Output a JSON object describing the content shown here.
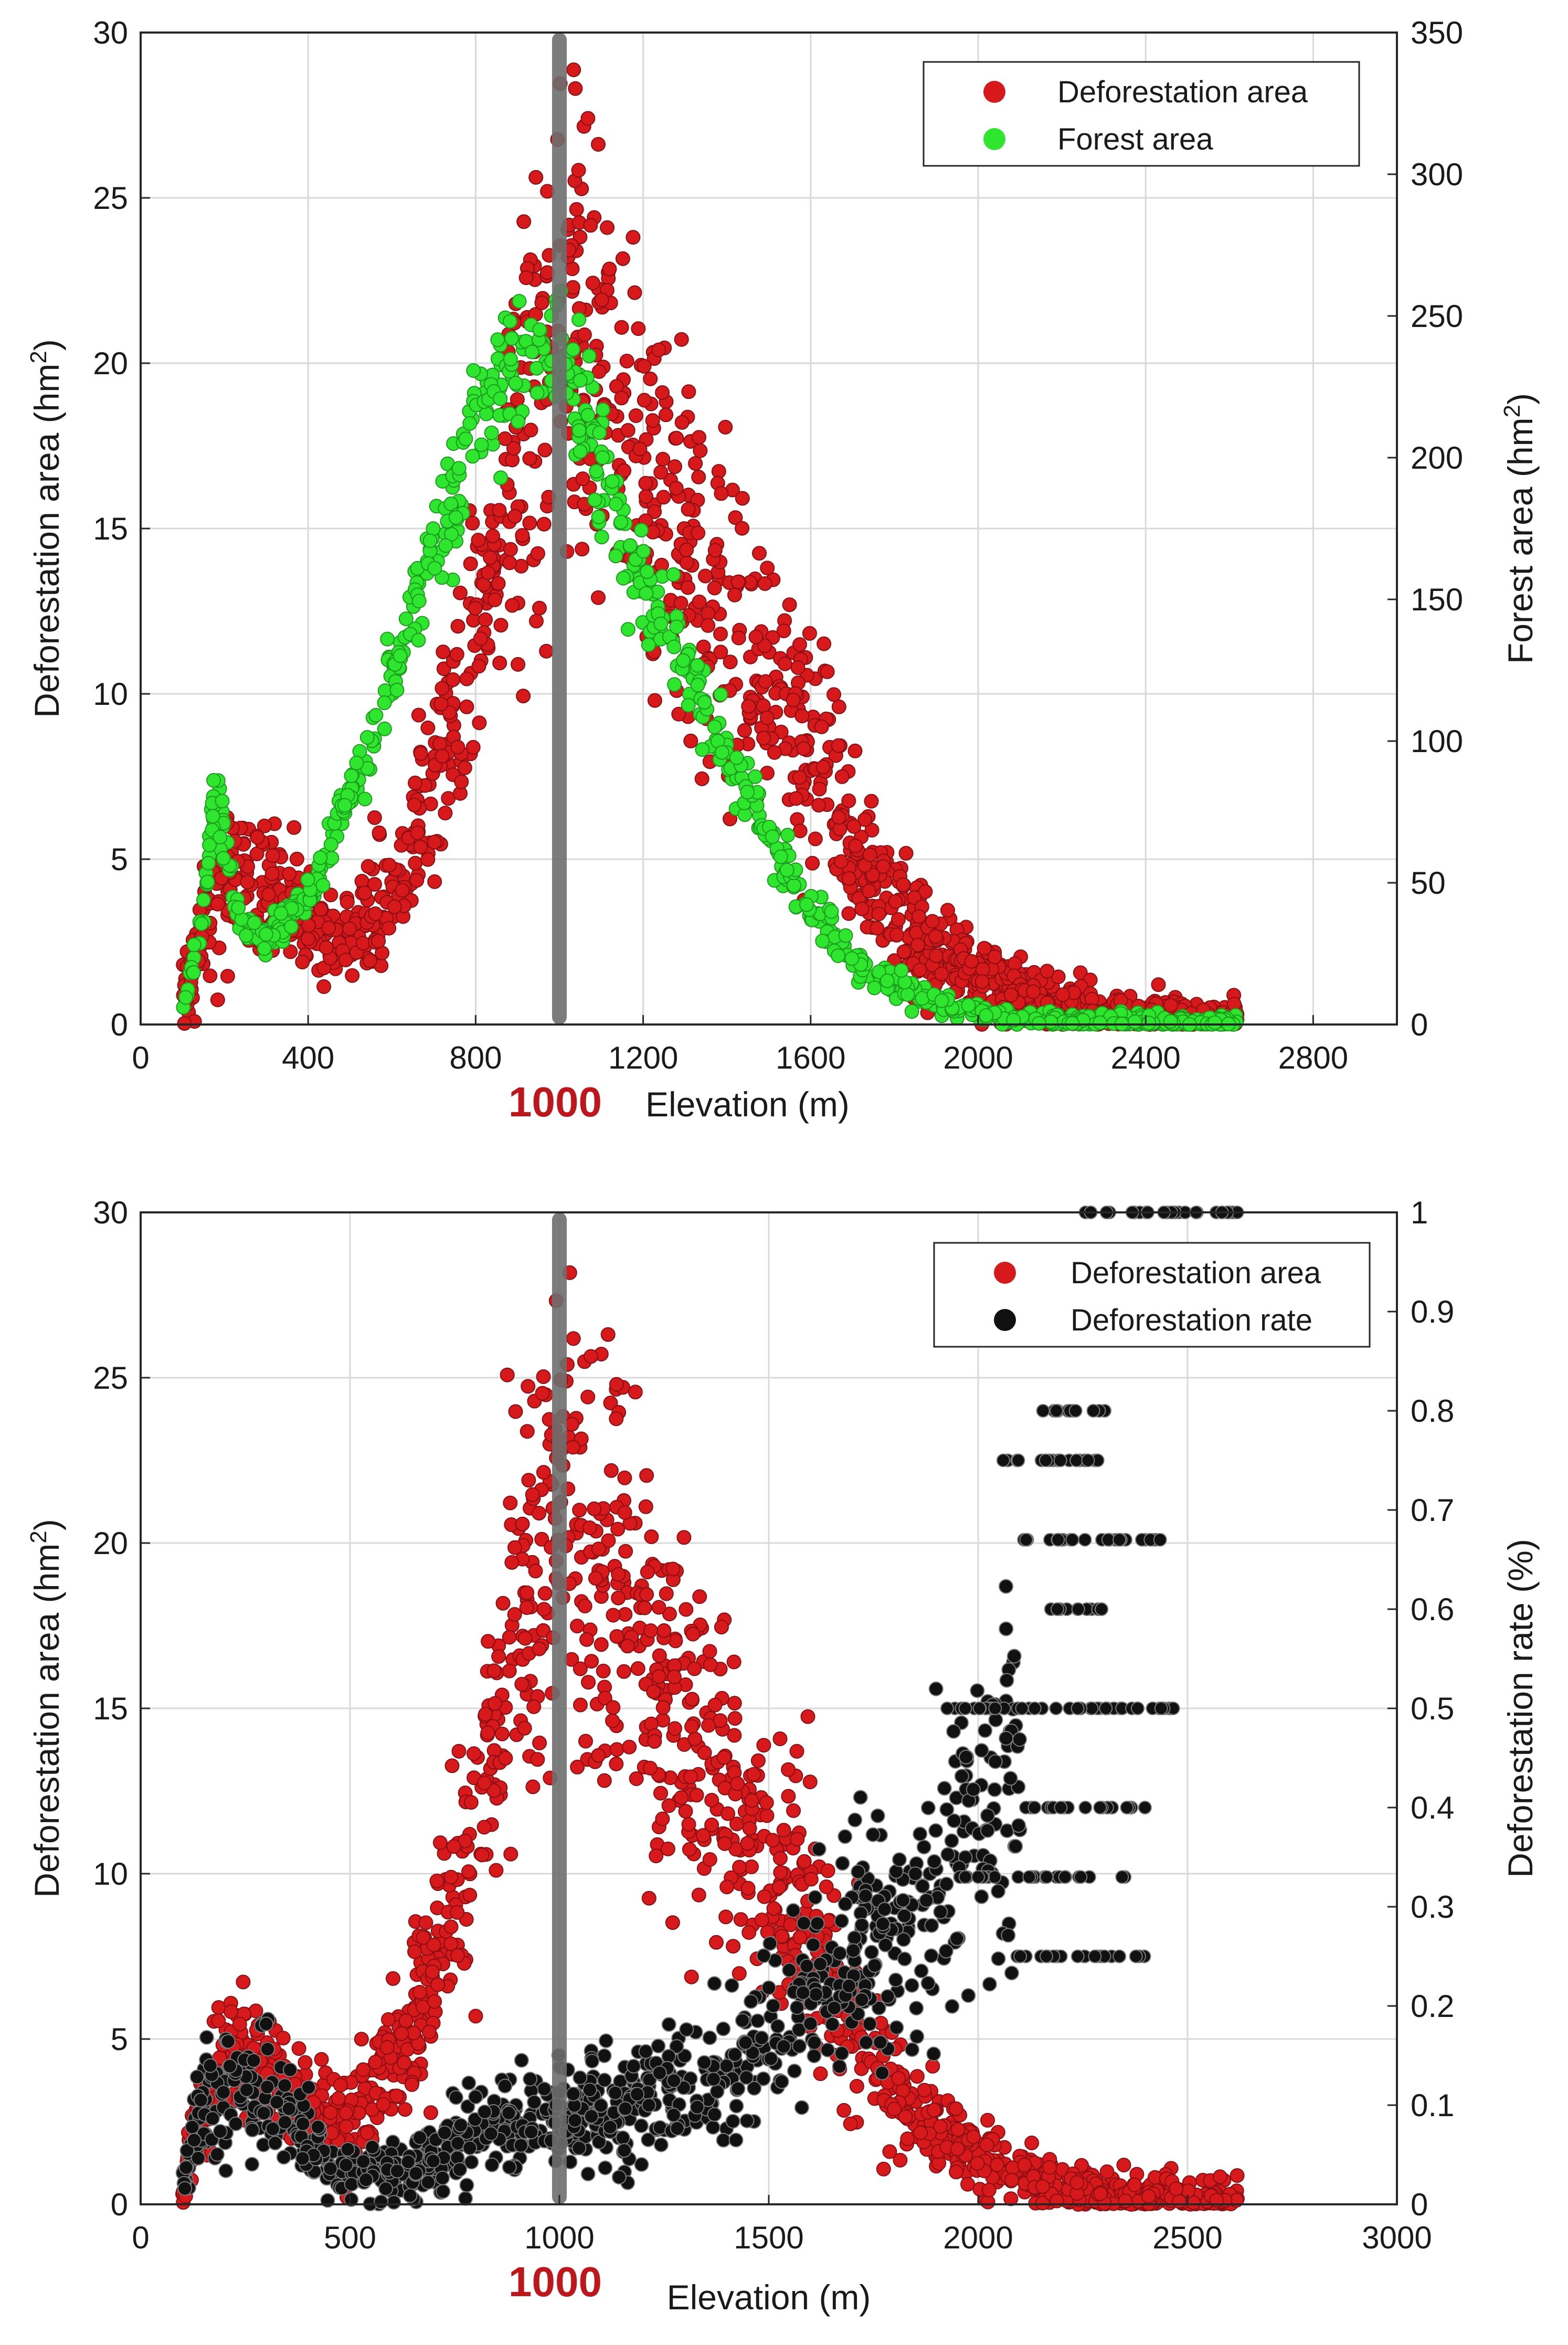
{
  "chart_data": [
    {
      "type": "scatter",
      "panel": "top",
      "xlabel": "Elevation (m)",
      "ylabel_left": "Deforestation area (hm",
      "ylabel_left_sup": "2",
      "ylabel_left_end": ")",
      "ylabel_right": "Forest area (hm",
      "ylabel_right_sup": "2",
      "ylabel_right_end": ")",
      "xlim": [
        0,
        3000
      ],
      "ylim_left": [
        0,
        30
      ],
      "ylim_right": [
        0,
        350
      ],
      "xticks": [
        0,
        400,
        800,
        1200,
        1600,
        2000,
        2400,
        2800
      ],
      "yticks_left": [
        0,
        5,
        10,
        15,
        20,
        25,
        30
      ],
      "yticks_right": [
        0,
        50,
        100,
        150,
        200,
        250,
        300,
        350
      ],
      "vline_x": 1000,
      "vline_label": "1000",
      "grid": true,
      "legend_position": "top-right",
      "colors": {
        "deforestation": "#d7191c",
        "forest": "#2ee62e",
        "rate": "#111111",
        "vline": "#6e6e6e"
      },
      "series": [
        {
          "name": "Deforestation area",
          "axis": "left",
          "trend": [
            [
              100,
              0.5
            ],
            [
              150,
              3.2
            ],
            [
              200,
              4.5
            ],
            [
              300,
              4.2
            ],
            [
              400,
              2.8
            ],
            [
              500,
              2.6
            ],
            [
              600,
              4.0
            ],
            [
              700,
              7.0
            ],
            [
              800,
              11.5
            ],
            [
              900,
              17.0
            ],
            [
              1000,
              21.0
            ],
            [
              1100,
              19.0
            ],
            [
              1200,
              16.5
            ],
            [
              1300,
              14.5
            ],
            [
              1400,
              12.2
            ],
            [
              1500,
              10.0
            ],
            [
              1600,
              8.5
            ],
            [
              1700,
              5.5
            ],
            [
              1800,
              3.6
            ],
            [
              1900,
              2.2
            ],
            [
              2000,
              1.4
            ],
            [
              2100,
              0.9
            ],
            [
              2200,
              0.5
            ],
            [
              2300,
              0.3
            ],
            [
              2400,
              0.15
            ],
            [
              2500,
              0.1
            ],
            [
              2620,
              0.1
            ]
          ]
        },
        {
          "name": "Forest area",
          "axis": "right",
          "trend": [
            [
              100,
              5
            ],
            [
              150,
              40
            ],
            [
              180,
              85
            ],
            [
              200,
              65
            ],
            [
              240,
              35
            ],
            [
              300,
              30
            ],
            [
              400,
              45
            ],
            [
              500,
              80
            ],
            [
              600,
              125
            ],
            [
              700,
              165
            ],
            [
              800,
              205
            ],
            [
              850,
              220
            ],
            [
              900,
              235
            ],
            [
              1000,
              240
            ],
            [
              1050,
              225
            ],
            [
              1100,
              195
            ],
            [
              1200,
              155
            ],
            [
              1300,
              130
            ],
            [
              1400,
              95
            ],
            [
              1500,
              65
            ],
            [
              1600,
              40
            ],
            [
              1700,
              24
            ],
            [
              1800,
              14
            ],
            [
              1900,
              8
            ],
            [
              2000,
              4
            ],
            [
              2100,
              2
            ],
            [
              2200,
              1
            ],
            [
              2400,
              0.5
            ],
            [
              2620,
              0.2
            ]
          ]
        }
      ]
    },
    {
      "type": "scatter",
      "panel": "bottom",
      "xlabel": "Elevation (m)",
      "ylabel_left": "Deforestation area (hm",
      "ylabel_left_sup": "2",
      "ylabel_left_end": ")",
      "ylabel_right": "Deforestation rate (%)",
      "xlim": [
        0,
        3000
      ],
      "ylim_left": [
        0,
        30
      ],
      "ylim_right": [
        0,
        1
      ],
      "xticks": [
        0,
        500,
        1000,
        1500,
        2000,
        2500,
        3000
      ],
      "yticks_left": [
        0,
        5,
        10,
        15,
        20,
        25,
        30
      ],
      "yticks_right": [
        0,
        0.1,
        0.2,
        0.3,
        0.4,
        0.5,
        0.6,
        0.7,
        0.8,
        0.9,
        1
      ],
      "vline_x": 1000,
      "vline_label": "1000",
      "grid": true,
      "legend_position": "top-right",
      "series": [
        {
          "name": "Deforestation area",
          "axis": "left",
          "trend": [
            [
              100,
              0.5
            ],
            [
              150,
              3.2
            ],
            [
              200,
              4.5
            ],
            [
              300,
              4.2
            ],
            [
              400,
              2.8
            ],
            [
              500,
              2.6
            ],
            [
              600,
              4.0
            ],
            [
              700,
              7.0
            ],
            [
              800,
              11.5
            ],
            [
              900,
              17.0
            ],
            [
              1000,
              21.0
            ],
            [
              1100,
              19.0
            ],
            [
              1200,
              16.5
            ],
            [
              1300,
              14.5
            ],
            [
              1400,
              12.2
            ],
            [
              1500,
              10.0
            ],
            [
              1600,
              8.5
            ],
            [
              1700,
              5.5
            ],
            [
              1800,
              3.6
            ],
            [
              1900,
              2.2
            ],
            [
              2000,
              1.4
            ],
            [
              2100,
              0.9
            ],
            [
              2200,
              0.5
            ],
            [
              2300,
              0.3
            ],
            [
              2400,
              0.15
            ],
            [
              2500,
              0.1
            ],
            [
              2620,
              0.1
            ]
          ]
        },
        {
          "name": "Deforestation rate",
          "axis": "right",
          "trend": [
            [
              100,
              0.02
            ],
            [
              150,
              0.1
            ],
            [
              200,
              0.11
            ],
            [
              300,
              0.12
            ],
            [
              400,
              0.06
            ],
            [
              500,
              0.03
            ],
            [
              600,
              0.03
            ],
            [
              700,
              0.05
            ],
            [
              800,
              0.07
            ],
            [
              900,
              0.08
            ],
            [
              1000,
              0.09
            ],
            [
              1200,
              0.1
            ],
            [
              1400,
              0.13
            ],
            [
              1500,
              0.16
            ],
            [
              1600,
              0.22
            ],
            [
              1700,
              0.25
            ],
            [
              1800,
              0.28
            ],
            [
              1900,
              0.33
            ],
            [
              2000,
              0.38
            ],
            [
              2100,
              0.45
            ],
            [
              2200,
              0.55
            ],
            [
              2300,
              0.6
            ],
            [
              2400,
              0.65
            ],
            [
              2600,
              0.7
            ]
          ],
          "discrete_levels": [
            {
              "y": 1.0,
              "x_range": [
                2250,
                2620
              ]
            },
            {
              "y": 0.8,
              "x_range": [
                2150,
                2320
              ]
            },
            {
              "y": 0.75,
              "x_range": [
                2050,
                2300
              ]
            },
            {
              "y": 0.67,
              "x_range": [
                2100,
                2460
              ]
            },
            {
              "y": 0.6,
              "x_range": [
                2150,
                2300
              ]
            },
            {
              "y": 0.5,
              "x_range": [
                1920,
                2480
              ]
            },
            {
              "y": 0.4,
              "x_range": [
                2100,
                2400
              ]
            },
            {
              "y": 0.33,
              "x_range": [
                1950,
                2350
              ]
            },
            {
              "y": 0.25,
              "x_range": [
                2050,
                2400
              ]
            }
          ]
        }
      ]
    }
  ]
}
